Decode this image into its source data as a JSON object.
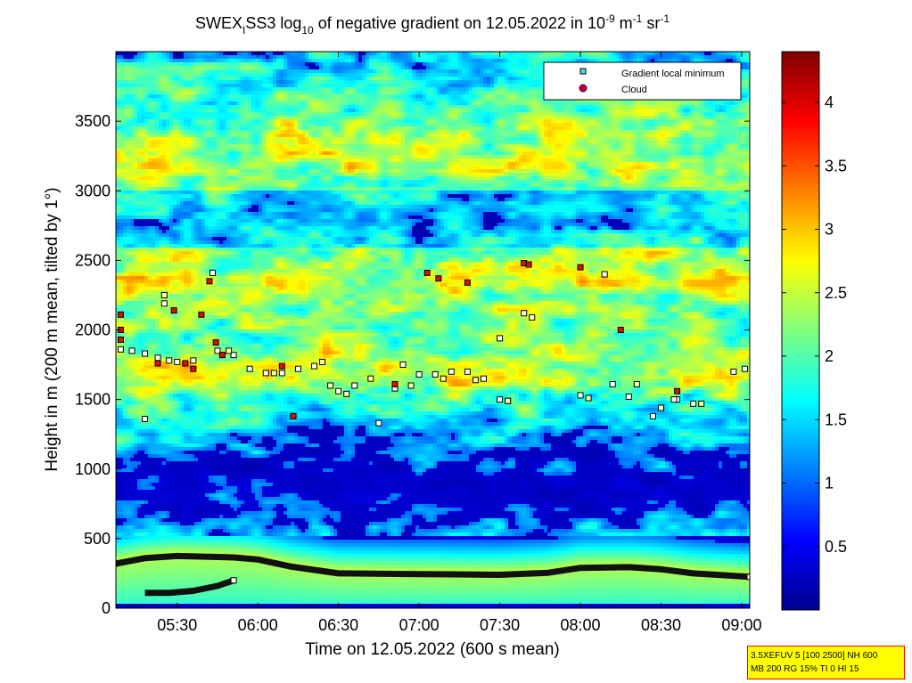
{
  "chart_data": {
    "type": "heatmap",
    "title": {
      "prefix": "SWEX",
      "sub_i": "I",
      "mid1": "SS3 log",
      "sub_10": "10",
      "mid2": " of negative gradient on 12.05.2022 in 10",
      "sup1": "-9",
      "mid3": " m",
      "sup2": "-1",
      "mid4": " sr",
      "sup3": "-1"
    },
    "xlabel": "Time on 12.05.2022 (600 s mean)",
    "ylabel": "Height in m (200 m mean, tilted by 1°)",
    "x_range_hours": [
      5.12,
      9.05
    ],
    "ylim": [
      0,
      4000
    ],
    "x_ticks": [
      {
        "label": "05:30",
        "value": 5.5
      },
      {
        "label": "06:00",
        "value": 6.0
      },
      {
        "label": "06:30",
        "value": 6.5
      },
      {
        "label": "07:00",
        "value": 7.0
      },
      {
        "label": "07:30",
        "value": 7.5
      },
      {
        "label": "08:00",
        "value": 8.0
      },
      {
        "label": "08:30",
        "value": 8.5
      },
      {
        "label": "09:00",
        "value": 9.0
      }
    ],
    "y_ticks": [
      0,
      500,
      1000,
      1500,
      2000,
      2500,
      3000,
      3500
    ],
    "colorbar": {
      "range": [
        0,
        4.4
      ],
      "ticks": [
        0.5,
        1,
        1.5,
        2,
        2.5,
        3,
        3.5,
        4
      ]
    },
    "legend": {
      "placement": "top-right",
      "entries": [
        {
          "label": "Gradient local minimum",
          "marker": "square",
          "color": "#55dddd"
        },
        {
          "label": "Cloud",
          "marker": "circle",
          "color": "#dd0000"
        }
      ]
    },
    "bands": [
      {
        "center_m": 1700,
        "width_m": 260,
        "strength": 0.55
      },
      {
        "center_m": 2350,
        "width_m": 350,
        "strength": 0.55
      },
      {
        "center_m": 3300,
        "width_m": 500,
        "strength": 0.5
      }
    ],
    "boundary_layer_line": {
      "x": [
        5.12,
        5.3,
        5.5,
        5.7,
        5.85,
        6.0,
        6.2,
        6.5,
        7.0,
        7.5,
        7.8,
        8.0,
        8.3,
        8.5,
        8.7,
        9.05
      ],
      "y": [
        320,
        360,
        375,
        370,
        365,
        350,
        300,
        250,
        245,
        240,
        255,
        290,
        295,
        280,
        250,
        225
      ]
    },
    "lower_line": {
      "x": [
        5.3,
        5.45,
        5.6,
        5.75,
        5.85
      ],
      "y": [
        110,
        110,
        125,
        160,
        200
      ]
    },
    "gradient_minima": [
      {
        "x": 5.15,
        "y": 1860
      },
      {
        "x": 5.22,
        "y": 1850
      },
      {
        "x": 5.3,
        "y": 1830
      },
      {
        "x": 5.38,
        "y": 1800
      },
      {
        "x": 5.45,
        "y": 1780
      },
      {
        "x": 5.5,
        "y": 1770
      },
      {
        "x": 5.6,
        "y": 1780
      },
      {
        "x": 5.75,
        "y": 1850
      },
      {
        "x": 5.85,
        "y": 1820
      },
      {
        "x": 5.95,
        "y": 1720
      },
      {
        "x": 6.05,
        "y": 1690
      },
      {
        "x": 6.15,
        "y": 1690
      },
      {
        "x": 6.25,
        "y": 1720
      },
      {
        "x": 6.35,
        "y": 1740
      },
      {
        "x": 6.5,
        "y": 1560
      },
      {
        "x": 6.6,
        "y": 1600
      },
      {
        "x": 6.75,
        "y": 1330
      },
      {
        "x": 6.85,
        "y": 1580
      },
      {
        "x": 6.9,
        "y": 1750
      },
      {
        "x": 7.0,
        "y": 1680
      },
      {
        "x": 7.1,
        "y": 1680
      },
      {
        "x": 7.2,
        "y": 1700
      },
      {
        "x": 7.3,
        "y": 1700
      },
      {
        "x": 7.4,
        "y": 1650
      },
      {
        "x": 7.5,
        "y": 1500
      },
      {
        "x": 7.55,
        "y": 1490
      },
      {
        "x": 7.65,
        "y": 2120
      },
      {
        "x": 8.0,
        "y": 1530
      },
      {
        "x": 8.2,
        "y": 1610
      },
      {
        "x": 8.3,
        "y": 1520
      },
      {
        "x": 8.45,
        "y": 1380
      },
      {
        "x": 8.6,
        "y": 1500
      },
      {
        "x": 8.7,
        "y": 1470
      },
      {
        "x": 8.95,
        "y": 1700
      },
      {
        "x": 9.02,
        "y": 1720
      },
      {
        "x": 5.42,
        "y": 2190
      },
      {
        "x": 5.72,
        "y": 2410
      },
      {
        "x": 5.3,
        "y": 1360
      },
      {
        "x": 8.15,
        "y": 2400
      },
      {
        "x": 7.5,
        "y": 1940
      },
      {
        "x": 8.58,
        "y": 1500
      },
      {
        "x": 5.85,
        "y": 200
      },
      {
        "x": 9.05,
        "y": 225
      }
    ],
    "clouds": [
      {
        "x": 5.15,
        "y": 2110
      },
      {
        "x": 5.15,
        "y": 2000
      },
      {
        "x": 5.15,
        "y": 1930
      },
      {
        "x": 5.38,
        "y": 1760
      },
      {
        "x": 5.48,
        "y": 2140
      },
      {
        "x": 5.55,
        "y": 1760
      },
      {
        "x": 5.6,
        "y": 1720
      },
      {
        "x": 5.65,
        "y": 2110
      },
      {
        "x": 5.7,
        "y": 2350
      },
      {
        "x": 5.74,
        "y": 1910
      },
      {
        "x": 5.78,
        "y": 1820
      },
      {
        "x": 6.15,
        "y": 1740
      },
      {
        "x": 6.22,
        "y": 1380
      },
      {
        "x": 6.85,
        "y": 1610
      },
      {
        "x": 7.05,
        "y": 2410
      },
      {
        "x": 7.12,
        "y": 2370
      },
      {
        "x": 7.3,
        "y": 2340
      },
      {
        "x": 7.65,
        "y": 2480
      },
      {
        "x": 7.68,
        "y": 2470
      },
      {
        "x": 8.0,
        "y": 2450
      },
      {
        "x": 8.25,
        "y": 2000
      },
      {
        "x": 8.6,
        "y": 1560
      }
    ],
    "cloud_minima": [
      {
        "x": 5.42,
        "y": 2250
      },
      {
        "x": 5.82,
        "y": 1850
      },
      {
        "x": 6.1,
        "y": 1690
      },
      {
        "x": 6.4,
        "y": 1770
      },
      {
        "x": 6.45,
        "y": 1600
      },
      {
        "x": 6.55,
        "y": 1540
      },
      {
        "x": 6.7,
        "y": 1650
      },
      {
        "x": 6.95,
        "y": 1600
      },
      {
        "x": 7.15,
        "y": 1650
      },
      {
        "x": 7.35,
        "y": 1640
      },
      {
        "x": 7.55,
        "y": 1490
      },
      {
        "x": 7.7,
        "y": 2090
      },
      {
        "x": 8.05,
        "y": 1510
      },
      {
        "x": 8.35,
        "y": 1610
      },
      {
        "x": 8.5,
        "y": 1440
      },
      {
        "x": 8.75,
        "y": 1470
      }
    ]
  },
  "info_box": {
    "line1": "3.5XEFUV 5 [100 2500] NH 600",
    "line2": "MB 200 RG 15% TI 0 HI 15"
  }
}
